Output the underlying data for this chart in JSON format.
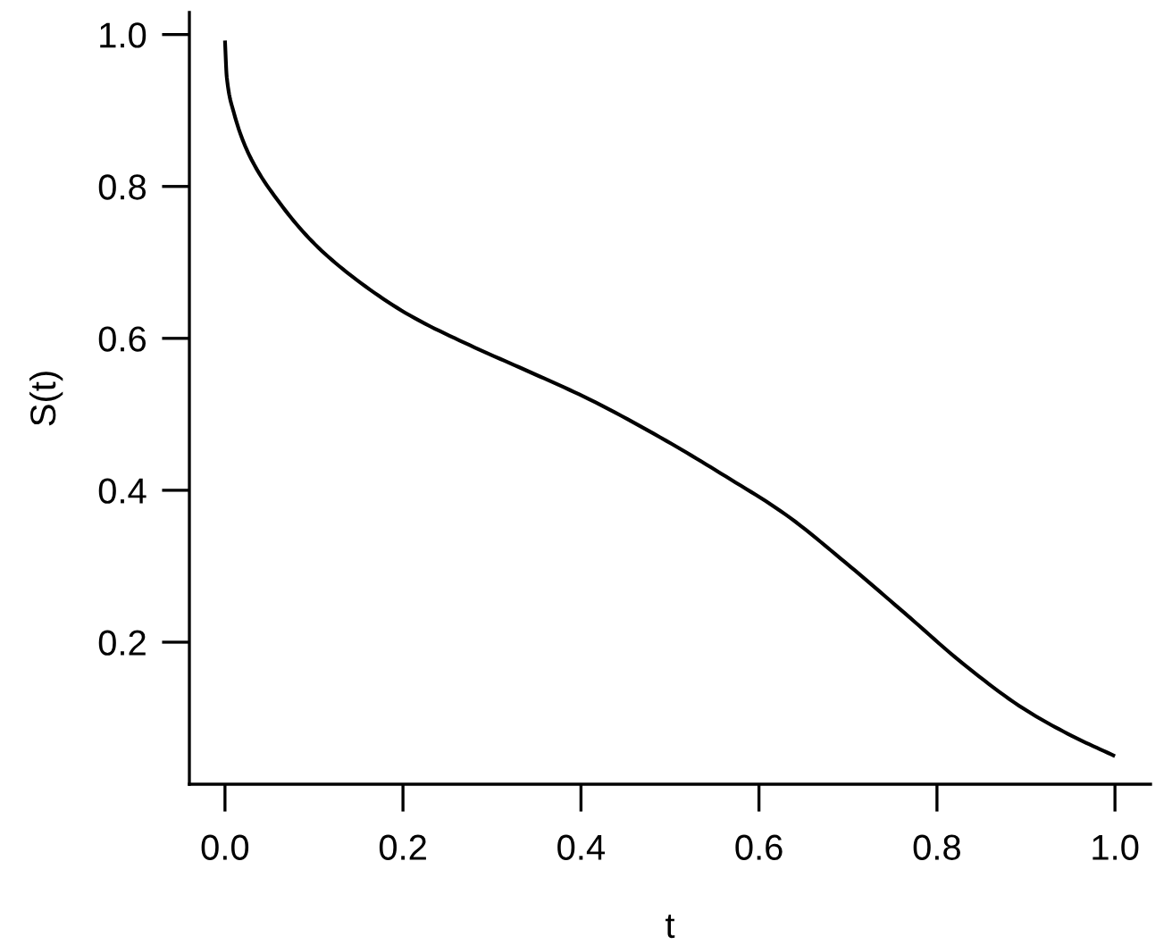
{
  "chart_data": {
    "type": "line",
    "xlabel": "t",
    "ylabel": "S(t)",
    "x": [
      0.0,
      0.002,
      0.01,
      0.027,
      0.061,
      0.101,
      0.148,
      0.208,
      0.275,
      0.342,
      0.409,
      0.496,
      0.563,
      0.63,
      0.697,
      0.764,
      0.83,
      0.898,
      0.951,
      1.0
    ],
    "series": [
      {
        "color": "#000000",
        "values": [
          0.992,
          0.944,
          0.897,
          0.842,
          0.779,
          0.724,
          0.677,
          0.63,
          0.591,
          0.556,
          0.52,
          0.465,
          0.418,
          0.368,
          0.305,
          0.238,
          0.171,
          0.112,
          0.077,
          0.05
        ]
      }
    ],
    "xlim": [
      -0.04,
      1.04
    ],
    "ylim": [
      0.013,
      1.029
    ],
    "xticks": [
      {
        "value": 0.0,
        "label": "0.0"
      },
      0.2,
      0.4,
      0.6,
      0.8,
      {
        "value": 1.0,
        "label": "1.0"
      }
    ],
    "yticks": [
      0.2,
      0.4,
      0.6,
      0.8,
      {
        "value": 1.0,
        "label": "1.0"
      }
    ],
    "grid": false,
    "line_style": "solid"
  }
}
